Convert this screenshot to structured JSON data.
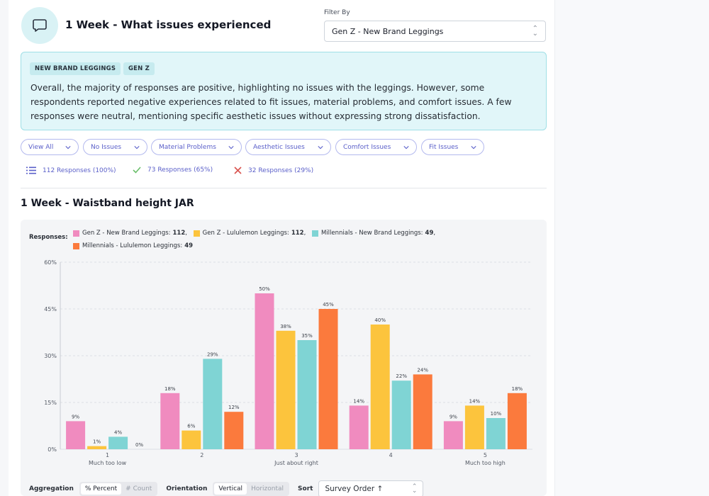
{
  "section": {
    "title": "1 Week - What issues experienced",
    "filter_label": "Filter By",
    "filter_value": "Gen Z - New Brand Leggings"
  },
  "summary": {
    "tags": [
      "NEW BRAND LEGGINGS",
      "GEN Z"
    ],
    "text": "Overall, the majority of responses are positive, highlighting no issues with the leggings. However, some respondents reported negative experiences related to fit issues, material problems, and comfort issues. A few responses were neutral, mentioning specific aesthetic issues without expressing strong dissatisfaction."
  },
  "filters": [
    {
      "label": "View All"
    },
    {
      "label": "No Issues"
    },
    {
      "label": "Material Problems"
    },
    {
      "label": "Aesthetic Issues"
    },
    {
      "label": "Comfort Issues"
    },
    {
      "label": "Fit Issues"
    }
  ],
  "stats": {
    "total": "112 Responses (100%)",
    "positive": "73 Responses (65%)",
    "negative": "32 Responses (29%)"
  },
  "chart_title": "1 Week - Waistband height JAR",
  "chart_data": {
    "type": "bar",
    "legend_label": "Responses:",
    "categories": [
      "1",
      "2",
      "3",
      "4",
      "5"
    ],
    "category_sublabels": [
      "Much too low",
      "",
      "Just about right",
      "",
      "Much too high"
    ],
    "y_ticks": [
      "0%",
      "15%",
      "30%",
      "45%",
      "60%"
    ],
    "ylim": [
      0,
      60
    ],
    "series": [
      {
        "name": "Gen Z - New Brand Leggings:",
        "count": "112",
        "color": "#f08bbf",
        "values": [
          9,
          18,
          50,
          14,
          9
        ]
      },
      {
        "name": "Gen Z - Lululemon Leggings:",
        "count": "112",
        "color": "#fcc43d",
        "values": [
          1,
          6,
          38,
          40,
          14
        ]
      },
      {
        "name": "Millennials - New Brand Leggings:",
        "count": "49",
        "color": "#7fd4d4",
        "values": [
          4,
          29,
          35,
          22,
          10
        ]
      },
      {
        "name": "Millennials - Lululemon Leggings:",
        "count": "49",
        "color": "#fb7a3d",
        "values": [
          0,
          12,
          45,
          24,
          18
        ]
      }
    ],
    "grid": true
  },
  "controls": {
    "aggregation_label": "Aggregation",
    "aggregation_options": [
      "% Percent",
      "# Count"
    ],
    "orientation_label": "Orientation",
    "orientation_options": [
      "Vertical",
      "Horizontal"
    ],
    "sort_label": "Sort",
    "sort_value": "Survey Order ↑"
  },
  "colors": {
    "accent": "#5a5fc9",
    "summary_bg": "#e1f6f9",
    "check": "#6bbf6b",
    "cross": "#d9534f"
  }
}
